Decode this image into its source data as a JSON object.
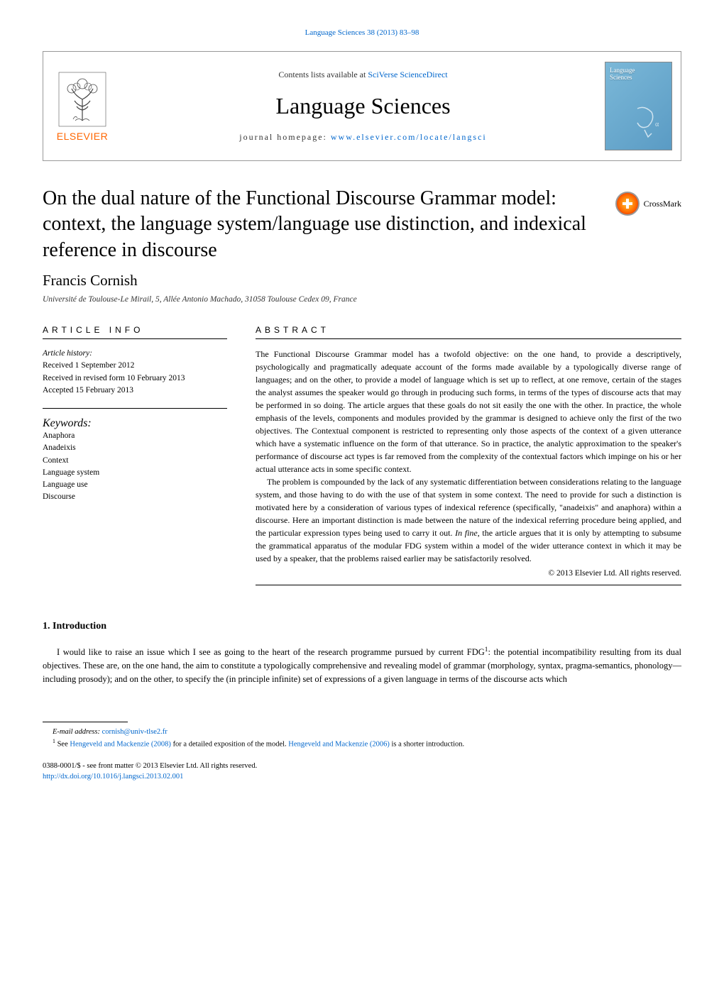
{
  "citation": "Language Sciences 38 (2013) 83–98",
  "header": {
    "contents_prefix": "Contents lists available at ",
    "contents_link": "SciVerse ScienceDirect",
    "journal_title": "Language Sciences",
    "homepage_prefix": "journal homepage: ",
    "homepage_link": "www.elsevier.com/locate/langsci",
    "publisher_name": "ELSEVIER",
    "cover_text_1": "Language",
    "cover_text_2": "Sciences"
  },
  "crossmark_label": "CrossMark",
  "article": {
    "title": "On the dual nature of the Functional Discourse Grammar model: context, the language system/language use distinction, and indexical reference in discourse",
    "author": "Francis Cornish",
    "affiliation": "Université de Toulouse-Le Mirail, 5, Allée Antonio Machado, 31058 Toulouse Cedex 09, France"
  },
  "info": {
    "heading": "article info",
    "history_label": "Article history:",
    "received": "Received 1 September 2012",
    "revised": "Received in revised form 10 February 2013",
    "accepted": "Accepted 15 February 2013",
    "keywords_label": "Keywords:",
    "keywords": [
      "Anaphora",
      "Anadeixis",
      "Context",
      "Language system",
      "Language use",
      "Discourse"
    ]
  },
  "abstract": {
    "heading": "abstract",
    "para1": "The Functional Discourse Grammar model has a twofold objective: on the one hand, to provide a descriptively, psychologically and pragmatically adequate account of the forms made available by a typologically diverse range of languages; and on the other, to provide a model of language which is set up to reflect, at one remove, certain of the stages the analyst assumes the speaker would go through in producing such forms, in terms of the types of discourse acts that may be performed in so doing. The article argues that these goals do not sit easily the one with the other. In practice, the whole emphasis of the levels, components and modules provided by the grammar is designed to achieve only the first of the two objectives. The Contextual component is restricted to representing only those aspects of the context of a given utterance which have a systematic influence on the form of that utterance. So in practice, the analytic approximation to the speaker's performance of discourse act types is far removed from the complexity of the contextual factors which impinge on his or her actual utterance acts in some specific context.",
    "para2": "The problem is compounded by the lack of any systematic differentiation between considerations relating to the language system, and those having to do with the use of that system in some context. The need to provide for such a distinction is motivated here by a consideration of various types of indexical reference (specifically, \"anadeixis\" and anaphora) within a discourse. Here an important distinction is made between the nature of the indexical referring procedure being applied, and the particular expression types being used to carry it out. In fine, the article argues that it is only by attempting to subsume the grammatical apparatus of the modular FDG system within a model of the wider utterance context in which it may be used by a speaker, that the problems raised earlier may be satisfactorily resolved.",
    "copyright": "© 2013 Elsevier Ltd. All rights reserved."
  },
  "intro": {
    "heading": "1. Introduction",
    "text_before_sup": "I would like to raise an issue which I see as going to the heart of the research programme pursued by current FDG",
    "sup": "1",
    "text_after_sup": ": the potential incompatibility resulting from its dual objectives. These are, on the one hand, the aim to constitute a typologically comprehensive and revealing model of grammar (morphology, syntax, pragma-semantics, phonology—including prosody); and on the other, to specify the (in principle infinite) set of expressions of a given language in terms of the discourse acts which"
  },
  "footnotes": {
    "email_label": "E-mail address:",
    "email": "cornish@univ-tlse2.fr",
    "fn1_num": "1",
    "fn1_before": "See ",
    "fn1_link1": "Hengeveld and Mackenzie (2008)",
    "fn1_mid": " for a detailed exposition of the model. ",
    "fn1_link2": "Hengeveld and Mackenzie (2006)",
    "fn1_after": " is a shorter introduction."
  },
  "meta": {
    "line1": "0388-0001/$ - see front matter © 2013 Elsevier Ltd. All rights reserved.",
    "doi": "http://dx.doi.org/10.1016/j.langsci.2013.02.001"
  }
}
